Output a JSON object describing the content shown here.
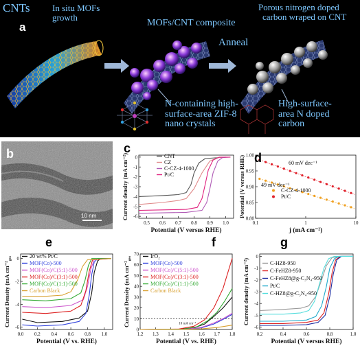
{
  "schematic": {
    "panel_label": "a",
    "texts": {
      "cnts": "CNTs",
      "insitu_line1": "In situ MOFs",
      "insitu_line2": "growth",
      "mofcnt": "MOFs/CNT composite",
      "anneal": "Anneal",
      "porous_line1": "Porous nitrogen doped",
      "porous_line2": "carbon wraped on CNT",
      "zif_line1": "N-containing high-",
      "zif_line2": "surface-area ZIF-8",
      "zif_line3": "nano crystals",
      "hsa_line1": "High-surface-",
      "hsa_line2": "area N doped",
      "hsa_line3": "carbon"
    }
  },
  "panel_b": {
    "label": "b",
    "scalebar": "10 nm"
  },
  "chart_data": [
    {
      "panel": "c",
      "type": "line",
      "ylabel": "Current density (mA cm⁻²)",
      "xlabel": "Potential (V versus RHE)",
      "xlim": [
        0.45,
        1.05
      ],
      "ylim": [
        -6.2,
        0.2
      ],
      "xticks": [
        "0.5",
        "0.6",
        "0.7",
        "0.8",
        "0.9",
        "1.0"
      ],
      "yticks": [
        "0",
        "-1",
        "-2",
        "-3",
        "-4",
        "-5",
        "-6"
      ],
      "legend": [
        "CNT",
        "CZ",
        "C-CZ-4-1000",
        "Pt/C"
      ],
      "series": [
        {
          "name": "CNT",
          "color": "#555555",
          "points": [
            [
              0.45,
              -4.0
            ],
            [
              0.6,
              -3.9
            ],
            [
              0.7,
              -3.8
            ],
            [
              0.75,
              -3.6
            ],
            [
              0.78,
              -2.8
            ],
            [
              0.8,
              -1.6
            ],
            [
              0.83,
              -0.6
            ],
            [
              0.87,
              -0.15
            ],
            [
              1.0,
              0.0
            ]
          ]
        },
        {
          "name": "CZ",
          "color": "#e08a8a",
          "points": [
            [
              0.45,
              -4.8
            ],
            [
              0.6,
              -4.6
            ],
            [
              0.7,
              -4.4
            ],
            [
              0.75,
              -4.2
            ],
            [
              0.8,
              -3.2
            ],
            [
              0.85,
              -1.6
            ],
            [
              0.9,
              -0.4
            ],
            [
              0.95,
              -0.05
            ],
            [
              1.0,
              0.0
            ]
          ]
        },
        {
          "name": "C-CZ-4-1000",
          "color": "#b05ab5",
          "points": [
            [
              0.45,
              -5.7
            ],
            [
              0.6,
              -5.65
            ],
            [
              0.75,
              -5.6
            ],
            [
              0.85,
              -5.4
            ],
            [
              0.88,
              -4.6
            ],
            [
              0.9,
              -3.2
            ],
            [
              0.92,
              -1.6
            ],
            [
              0.95,
              -0.4
            ],
            [
              0.98,
              -0.05
            ],
            [
              1.03,
              0.0
            ]
          ]
        },
        {
          "name": "Pt/C",
          "color": "#e0207e",
          "points": [
            [
              0.45,
              -5.4
            ],
            [
              0.6,
              -5.35
            ],
            [
              0.75,
              -5.3
            ],
            [
              0.82,
              -5.1
            ],
            [
              0.85,
              -4.2
            ],
            [
              0.87,
              -2.8
            ],
            [
              0.89,
              -1.3
            ],
            [
              0.92,
              -0.3
            ],
            [
              0.96,
              0.0
            ],
            [
              1.03,
              0.0
            ]
          ]
        }
      ]
    },
    {
      "panel": "d",
      "type": "scatter",
      "ylabel": "Potential (V versus RHE)",
      "xlabel": "j (mA cm⁻²)",
      "xscale": "log",
      "xlim": [
        0.1,
        10
      ],
      "ylim": [
        0.8,
        1.0
      ],
      "xticks": [
        "0.1",
        "1",
        "10"
      ],
      "yticks": [
        "0.80",
        "0.85",
        "0.90",
        "0.95",
        "1.00"
      ],
      "annotations": [
        "60 mV dec⁻¹",
        "49 mV dec⁻¹"
      ],
      "legend": [
        "C-CZ-4-1000",
        "Pt/C"
      ],
      "series": [
        {
          "name": "C-CZ-4-1000",
          "color": "#f0a020",
          "x0": 0.12,
          "x1": 8,
          "y0": 0.925,
          "y1": 0.835
        },
        {
          "name": "Pt/C",
          "color": "#e0202a",
          "x0": 0.12,
          "x1": 8,
          "y0": 0.985,
          "y1": 0.88
        }
      ]
    },
    {
      "panel": "e",
      "type": "line",
      "ylabel": "Current Density (mA cm⁻²",
      "ylabel_sub": "geo",
      "xlabel": "Potential (V vs. RHE)",
      "xlim": [
        0.0,
        1.1
      ],
      "ylim": [
        -6.2,
        0.4
      ],
      "xticks": [
        "0.0",
        "0.2",
        "0.4",
        "0.6",
        "0.8",
        "1.0"
      ],
      "yticks": [
        "0",
        "-2",
        "-4",
        "-6"
      ],
      "legend": [
        "20 wt% Pt/C",
        "MOF(Co)-500",
        "MOF(Co)/C(5:1)-500",
        "MOF(Co)/C(3:1)-500",
        "MOF(Co)/C(1:1)-500",
        "Carbon Black"
      ],
      "series": [
        {
          "name": "20 wt% Pt/C",
          "color": "#111111",
          "points": [
            [
              0.02,
              -5.3
            ],
            [
              0.2,
              -5.6
            ],
            [
              0.5,
              -5.5
            ],
            [
              0.7,
              -5.2
            ],
            [
              0.8,
              -4.6
            ],
            [
              0.85,
              -3.0
            ],
            [
              0.88,
              -1.2
            ],
            [
              0.92,
              -0.2
            ],
            [
              0.96,
              0.0
            ],
            [
              1.08,
              0.0
            ]
          ]
        },
        {
          "name": "MOF(Co)-500",
          "color": "#3344dd",
          "points": [
            [
              0.02,
              -5.8
            ],
            [
              0.2,
              -5.9
            ],
            [
              0.5,
              -5.8
            ],
            [
              0.7,
              -5.5
            ],
            [
              0.78,
              -4.8
            ],
            [
              0.82,
              -3.2
            ],
            [
              0.85,
              -1.4
            ],
            [
              0.88,
              -0.3
            ],
            [
              0.92,
              0.0
            ],
            [
              1.08,
              0.0
            ]
          ]
        },
        {
          "name": "MOF(Co)/C(5:1)-500",
          "color": "#cc55cc",
          "points": [
            [
              0.02,
              -4.2
            ],
            [
              0.3,
              -4.3
            ],
            [
              0.6,
              -4.1
            ],
            [
              0.75,
              -3.6
            ],
            [
              0.8,
              -2.4
            ],
            [
              0.84,
              -0.9
            ],
            [
              0.88,
              -0.1
            ],
            [
              1.08,
              0.0
            ]
          ]
        },
        {
          "name": "MOF(Co)/C(3:1)-500",
          "color": "#dd2222",
          "points": [
            [
              0.02,
              -4.7
            ],
            [
              0.3,
              -4.8
            ],
            [
              0.6,
              -4.6
            ],
            [
              0.72,
              -4.1
            ],
            [
              0.78,
              -2.8
            ],
            [
              0.82,
              -1.1
            ],
            [
              0.86,
              -0.1
            ],
            [
              1.08,
              0.0
            ]
          ]
        },
        {
          "name": "MOF(Co)/C(1:1)-500",
          "color": "#33aa33",
          "points": [
            [
              0.02,
              -3.6
            ],
            [
              0.3,
              -3.7
            ],
            [
              0.6,
              -3.5
            ],
            [
              0.72,
              -3.0
            ],
            [
              0.77,
              -1.9
            ],
            [
              0.81,
              -0.6
            ],
            [
              0.85,
              0.0
            ],
            [
              1.08,
              0.0
            ]
          ]
        },
        {
          "name": "Carbon Black",
          "color": "#d8a030",
          "points": [
            [
              0.02,
              -3.3
            ],
            [
              0.3,
              -3.3
            ],
            [
              0.5,
              -3.2
            ],
            [
              0.6,
              -2.9
            ],
            [
              0.68,
              -1.9
            ],
            [
              0.74,
              -0.7
            ],
            [
              0.8,
              -0.1
            ],
            [
              1.08,
              0.0
            ]
          ]
        }
      ]
    },
    {
      "panel": "f",
      "type": "line",
      "ylabel": "Current Density (mA cm⁻²",
      "ylabel_sub": "geo",
      "xlabel": "Potential (V vs. RHE)",
      "xlim": [
        1.2,
        1.8
      ],
      "ylim": [
        0,
        70
      ],
      "xticks": [
        "1.2",
        "1.3",
        "1.4",
        "1.5",
        "1.6",
        "1.7",
        "1.8"
      ],
      "yticks": [
        "0",
        "10",
        "20",
        "30",
        "40",
        "50",
        "60",
        "70"
      ],
      "reference_line": {
        "y": 10,
        "label": "10 mA cm⁻²"
      },
      "legend": [
        "IrO₂",
        "MOF(Co)-500",
        "MOF(Co)/C(5:1)-500",
        "MOF(Co)/C(3:1)-500",
        "MOF(Co)/C(1:1)-500",
        "Carbon Black"
      ],
      "series": [
        {
          "name": "IrO₂",
          "color": "#111111",
          "points": [
            [
              1.2,
              0
            ],
            [
              1.45,
              0.2
            ],
            [
              1.55,
              1.5
            ],
            [
              1.62,
              5
            ],
            [
              1.68,
              12
            ],
            [
              1.74,
              20
            ],
            [
              1.8,
              30
            ]
          ]
        },
        {
          "name": "MOF(Co)-500",
          "color": "#3344dd",
          "points": [
            [
              1.2,
              0
            ],
            [
              1.5,
              0.2
            ],
            [
              1.6,
              1.5
            ],
            [
              1.68,
              5
            ],
            [
              1.75,
              10
            ],
            [
              1.8,
              14
            ]
          ]
        },
        {
          "name": "MOF(Co)/C(5:1)-500",
          "color": "#cc55cc",
          "points": [
            [
              1.2,
              0
            ],
            [
              1.5,
              0.3
            ],
            [
              1.6,
              2
            ],
            [
              1.68,
              6
            ],
            [
              1.74,
              10
            ],
            [
              1.8,
              15
            ]
          ]
        },
        {
          "name": "MOF(Co)/C(3:1)-500",
          "color": "#dd2222",
          "points": [
            [
              1.2,
              0
            ],
            [
              1.45,
              0.4
            ],
            [
              1.55,
              3
            ],
            [
              1.62,
              9
            ],
            [
              1.68,
              20
            ],
            [
              1.74,
              38
            ],
            [
              1.8,
              66
            ]
          ]
        },
        {
          "name": "MOF(Co)/C(1:1)-500",
          "color": "#33aa33",
          "points": [
            [
              1.2,
              0
            ],
            [
              1.48,
              0.3
            ],
            [
              1.57,
              2.5
            ],
            [
              1.64,
              8
            ],
            [
              1.7,
              16
            ],
            [
              1.75,
              26
            ],
            [
              1.8,
              38
            ]
          ]
        },
        {
          "name": "Carbon Black",
          "color": "#d8a030",
          "points": [
            [
              1.2,
              0
            ],
            [
              1.5,
              0.1
            ],
            [
              1.6,
              0.6
            ],
            [
              1.7,
              1.8
            ],
            [
              1.8,
              4
            ]
          ]
        }
      ]
    },
    {
      "panel": "g",
      "type": "line",
      "ylabel": "Current density (mA cm⁻²)",
      "xlabel": "Potential (V versus RHE)",
      "xlim": [
        0.2,
        1.0
      ],
      "ylim": [
        -6.2,
        0.2
      ],
      "xticks": [
        "0.2",
        "0.4",
        "0.6",
        "0.8",
        "1.0"
      ],
      "yticks": [
        "0",
        "-1",
        "-2",
        "-3",
        "-4",
        "-5",
        "-6"
      ],
      "legend": [
        "C-HZ8-950",
        "C-FeHZ8-950",
        "C-FeHZ8@g-C₃N₄-950",
        "Pt/C",
        "C-HZ8@g-C₃N₄-950"
      ],
      "series": [
        {
          "name": "C-HZ8-950",
          "color": "#999999",
          "points": [
            [
              0.2,
              -4.6
            ],
            [
              0.4,
              -4.5
            ],
            [
              0.55,
              -4.4
            ],
            [
              0.62,
              -4.2
            ],
            [
              0.68,
              -3.4
            ],
            [
              0.73,
              -2.0
            ],
            [
              0.77,
              -0.8
            ],
            [
              0.82,
              -0.1
            ],
            [
              0.9,
              0.0
            ],
            [
              1.0,
              0.0
            ]
          ]
        },
        {
          "name": "C-FeHZ8-950",
          "color": "#dd2222",
          "points": [
            [
              0.2,
              -5.7
            ],
            [
              0.4,
              -5.7
            ],
            [
              0.6,
              -5.6
            ],
            [
              0.7,
              -5.4
            ],
            [
              0.75,
              -4.8
            ],
            [
              0.79,
              -3.2
            ],
            [
              0.82,
              -1.4
            ],
            [
              0.85,
              -0.3
            ],
            [
              0.89,
              0.0
            ],
            [
              1.0,
              0.0
            ]
          ]
        },
        {
          "name": "C-FeHZ8@g-C₃N₄-950",
          "color": "#1a2aa0",
          "points": [
            [
              0.2,
              -5.85
            ],
            [
              0.4,
              -5.85
            ],
            [
              0.6,
              -5.8
            ],
            [
              0.7,
              -5.6
            ],
            [
              0.76,
              -5.0
            ],
            [
              0.8,
              -3.4
            ],
            [
              0.83,
              -1.5
            ],
            [
              0.86,
              -0.3
            ],
            [
              0.9,
              0.0
            ],
            [
              1.0,
              0.0
            ]
          ]
        },
        {
          "name": "Pt/C",
          "color": "#22aacc",
          "points": [
            [
              0.2,
              -5.5
            ],
            [
              0.4,
              -5.5
            ],
            [
              0.6,
              -5.4
            ],
            [
              0.68,
              -5.1
            ],
            [
              0.73,
              -4.2
            ],
            [
              0.77,
              -2.6
            ],
            [
              0.8,
              -1.0
            ],
            [
              0.84,
              -0.2
            ],
            [
              0.88,
              0.0
            ],
            [
              1.0,
              0.0
            ]
          ]
        },
        {
          "name": "C-HZ8@g-C₃N₄-950",
          "color": "#55dddd",
          "points": [
            [
              0.2,
              -4.9
            ],
            [
              0.4,
              -4.9
            ],
            [
              0.55,
              -4.8
            ],
            [
              0.62,
              -4.6
            ],
            [
              0.67,
              -3.8
            ],
            [
              0.71,
              -2.4
            ],
            [
              0.75,
              -1.0
            ],
            [
              0.79,
              -0.2
            ],
            [
              0.84,
              0.0
            ],
            [
              1.0,
              0.0
            ]
          ]
        }
      ]
    }
  ]
}
